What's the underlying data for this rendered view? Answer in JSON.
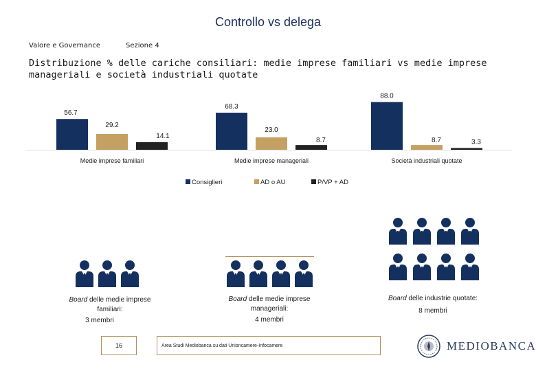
{
  "header": {
    "title": "Controllo vs delega",
    "section_left": "Valore e Governance",
    "section_right": "Sezione 4",
    "subtitle": "Distribuzione % delle cariche consiliari: medie imprese familiari vs medie imprese manageriali e società industriali quotate"
  },
  "colors": {
    "navy": "#14305f",
    "tan": "#c4a063",
    "dark": "#222222",
    "gold_border": "#b08f5a"
  },
  "chart_data": {
    "type": "bar",
    "title": "Distribuzione % delle cariche consiliari",
    "categories": [
      "Medie imprese familiari",
      "Medie imprese manageriali",
      "Società industriali quotate"
    ],
    "series": [
      {
        "name": "Consiglieri",
        "values": [
          56.7,
          68.3,
          88.0
        ],
        "labels": [
          "56.7",
          "68.3",
          "88.0"
        ]
      },
      {
        "name": "AD o AU",
        "values": [
          29.2,
          23.0,
          8.7
        ],
        "labels": [
          "29.2",
          "23.0",
          "8.7"
        ]
      },
      {
        "name": "P/VP + AD",
        "values": [
          14.1,
          8.7,
          3.3
        ],
        "labels": [
          "14.1",
          "8.7",
          "3.3"
        ]
      }
    ],
    "ylim": [
      0,
      100
    ],
    "legend": "bottom-center"
  },
  "boards": [
    {
      "prefix": "Board",
      "text": " delle medie imprese familiari:",
      "members": "3 membri",
      "count": 3
    },
    {
      "prefix": "Board",
      "text": " delle medie imprese manageriali:",
      "members": "4 membri",
      "count": 4
    },
    {
      "prefix": "Board",
      "text": " delle industrie quotate:",
      "members": "8 membri",
      "count": 8
    }
  ],
  "footer": {
    "page_number": "16",
    "source": "Area Studi Mediobanca su dati Unioncamere-Infocamere",
    "logo": "MEDIOBANCA"
  }
}
